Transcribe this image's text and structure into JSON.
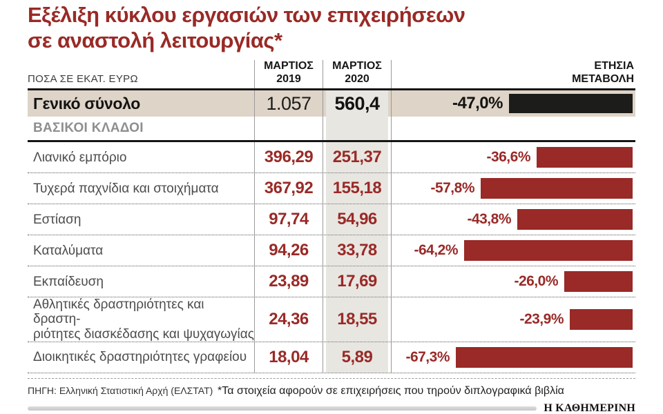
{
  "title": {
    "line1": "Εξέλιξη κύκλου εργασιών των επιχειρήσεων",
    "line2": "σε αναστολή λειτουργίας*"
  },
  "table": {
    "unit_label": "ΠΟΣΑ ΣΕ ΕΚΑΤ. ΕΥΡΩ",
    "col_2019": {
      "line1": "ΜΑΡΤΙΟΣ",
      "line2": "2019"
    },
    "col_2020": {
      "line1": "ΜΑΡΤΙΟΣ",
      "line2": "2020"
    },
    "col_change": {
      "line1": "ΕΤΗΣΙΑ",
      "line2": "ΜΕΤΑΒΟΛΗ"
    },
    "total": {
      "label": "Γενικό σύνολο",
      "v2019": "1.057",
      "v2020": "560,4",
      "change": "-47,0%",
      "pct_abs": 47.0
    },
    "section_label": "ΒΑΣΙΚΟΙ ΚΛΑΔΟΙ",
    "rows": [
      {
        "label_line1": "Λιανικό εμπόριο",
        "label_line2": "",
        "v2019": "396,29",
        "v2020": "251,37",
        "change": "-36,6%",
        "pct_abs": 36.6
      },
      {
        "label_line1": "Τυχερά παχνίδια και στοιχήματα",
        "label_line2": "",
        "v2019": "367,92",
        "v2020": "155,18",
        "change": "-57,8%",
        "pct_abs": 57.8
      },
      {
        "label_line1": "Εστίαση",
        "label_line2": "",
        "v2019": "97,74",
        "v2020": "54,96",
        "change": "-43,8%",
        "pct_abs": 43.8
      },
      {
        "label_line1": "Καταλύματα",
        "label_line2": "",
        "v2019": "94,26",
        "v2020": "33,78",
        "change": "-64,2%",
        "pct_abs": 64.2
      },
      {
        "label_line1": "Εκπαίδευση",
        "label_line2": "",
        "v2019": "23,89",
        "v2020": "17,69",
        "change": "-26,0%",
        "pct_abs": 26.0
      },
      {
        "label_line1": "Αθλητικές δραστηριότητες και δραστη-",
        "label_line2": "ριότητες διασκέδασης και ψυχαγωγίας",
        "v2019": "24,36",
        "v2020": "18,55",
        "change": "-23,9%",
        "pct_abs": 23.9
      },
      {
        "label_line1": "Διοικητικές δραστηριότητες γραφείου",
        "label_line2": "",
        "v2019": "18,04",
        "v2020": "5,89",
        "change": "-67,3%",
        "pct_abs": 67.3
      }
    ]
  },
  "footer": {
    "source": "ΠΗΓΗ: Ελληνική Στατιστική Αρχή (ΕΛΣΤΑΤ)",
    "note": "*Τα στοιχεία αφορούν σε επιχειρήσεις που τηρούν διπλογραφικά βιβλία",
    "brand": "Η ΚΑΘΗΜΕΡΙΝΗ"
  },
  "colors": {
    "accent_red": "#992a27",
    "total_bar_black": "#1c1c1a",
    "total_row_beige": "#ded4c7",
    "column_stripe_gray": "#e8e6e1"
  },
  "chart_data": {
    "type": "bar",
    "title": "Εξέλιξη κύκλου εργασιών των επιχειρήσεων σε αναστολή λειτουργίας*",
    "unit": "ΠΟΣΑ ΣΕ ΕΚΑΤ. ΕΥΡΩ",
    "categories": [
      "Γενικό σύνολο",
      "Λιανικό εμπόριο",
      "Τυχερά παχνίδια και στοιχήματα",
      "Εστίαση",
      "Καταλύματα",
      "Εκπαίδευση",
      "Αθλητικές δραστηριότητες και δραστηριότητες διασκέδασης και ψυχαγωγίας",
      "Διοικητικές δραστηριότητες γραφείου"
    ],
    "series": [
      {
        "name": "ΜΑΡΤΙΟΣ 2019",
        "values": [
          1057,
          396.29,
          367.92,
          97.74,
          94.26,
          23.89,
          24.36,
          18.04
        ]
      },
      {
        "name": "ΜΑΡΤΙΟΣ 2020",
        "values": [
          560.4,
          251.37,
          155.18,
          54.96,
          33.78,
          17.69,
          18.55,
          5.89
        ]
      },
      {
        "name": "ΕΤΗΣΙΑ ΜΕΤΑΒΟΛΗ %",
        "values": [
          -47.0,
          -36.6,
          -57.8,
          -43.8,
          -64.2,
          -26.0,
          -23.9,
          -67.3
        ]
      }
    ],
    "bar_orientation": "horizontal",
    "bars_anchored": "right",
    "xlim": [
      -70,
      0
    ],
    "grid": false,
    "legend_position": "column-headers"
  }
}
